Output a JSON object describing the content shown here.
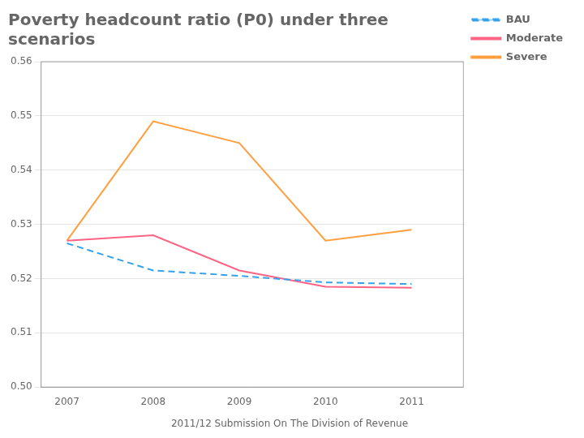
{
  "chart_data": {
    "type": "line",
    "title": [
      "Poverty headcount ratio (P0) under three",
      "scenarios"
    ],
    "subtitle": "2011/12 Submission On The Division of Revenue",
    "x": [
      2007,
      2008,
      2009,
      2010,
      2011
    ],
    "series": [
      {
        "name": "BAU",
        "values": [
          0.5265,
          0.5215,
          0.5205,
          0.5193,
          0.519
        ],
        "line_style": "dashed"
      },
      {
        "name": "Moderate",
        "values": [
          0.527,
          0.528,
          0.5215,
          0.5185,
          0.5183
        ],
        "line_style": "solid"
      },
      {
        "name": "Severe",
        "values": [
          0.527,
          0.549,
          0.545,
          0.527,
          0.529
        ],
        "line_style": "solid"
      }
    ],
    "xlim": [
      2006.7,
      2011.6
    ],
    "xticks": [
      2007,
      2008,
      2009,
      2010,
      2011
    ],
    "ylim": [
      0.5,
      0.56
    ],
    "yticks": [
      {
        "value": 0.5,
        "label": "0.50"
      },
      0.51,
      0.52,
      0.53,
      0.54,
      0.55,
      0.56
    ],
    "grid": "y",
    "legend": "right"
  }
}
